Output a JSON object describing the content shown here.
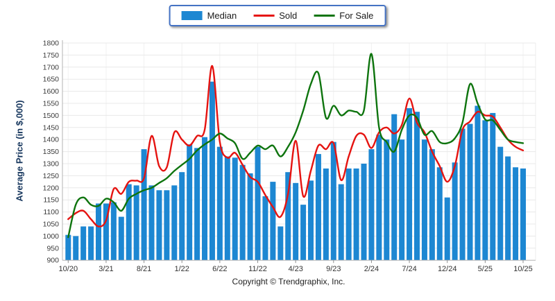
{
  "legend": {
    "items": [
      {
        "label": "Median",
        "type": "bar",
        "color": "#1d87d2"
      },
      {
        "label": "Sold",
        "type": "line",
        "color": "#e51310"
      },
      {
        "label": "For Sale",
        "type": "line",
        "color": "#0e740e"
      }
    ],
    "border_color": "#4472c4"
  },
  "y_axis": {
    "title": "Average Price (in $,000)",
    "min": 900,
    "max": 1800,
    "step": 50
  },
  "footer": {
    "copyright": "Copyright © Trendgraphix, Inc."
  },
  "chart_data": {
    "type": "bar",
    "title": "",
    "xlabel": "",
    "ylabel": "Average Price (in $,000)",
    "ylim": [
      900,
      1800
    ],
    "y_tick_step": 50,
    "grid": true,
    "legend_position": "top-center",
    "x": [
      "10/20",
      "11/20",
      "12/20",
      "1/21",
      "2/21",
      "3/21",
      "4/21",
      "5/21",
      "6/21",
      "7/21",
      "8/21",
      "9/21",
      "10/21",
      "11/21",
      "12/21",
      "1/22",
      "2/22",
      "3/22",
      "4/22",
      "5/22",
      "6/22",
      "7/22",
      "8/22",
      "9/22",
      "10/22",
      "11/22",
      "12/22",
      "1/23",
      "2/23",
      "3/23",
      "4/23",
      "5/23",
      "6/23",
      "7/23",
      "8/23",
      "9/23",
      "10/23",
      "11/23",
      "12/23",
      "1/24",
      "2/24",
      "3/24",
      "4/24",
      "5/24",
      "6/24",
      "7/24",
      "8/24",
      "9/24",
      "10/24",
      "11/24",
      "12/24",
      "1/25",
      "2/25",
      "3/25",
      "4/25",
      "5/25",
      "6/25",
      "7/25",
      "8/25",
      "9/25",
      "10/25"
    ],
    "x_tick_labels": [
      "10/20",
      "3/21",
      "8/21",
      "1/22",
      "6/22",
      "11/22",
      "4/23",
      "9/23",
      "2/24",
      "7/24",
      "12/24",
      "5/25",
      "10/25"
    ],
    "x_tick_indices": [
      0,
      5,
      10,
      15,
      20,
      25,
      30,
      35,
      40,
      45,
      50,
      55,
      60
    ],
    "series": [
      {
        "name": "Median",
        "type": "bar",
        "color": "#1d87d2",
        "values": [
          1005,
          1000,
          1040,
          1040,
          1135,
          1135,
          1140,
          1080,
          1215,
          1210,
          1360,
          1210,
          1190,
          1190,
          1210,
          1265,
          1380,
          1365,
          1410,
          1640,
          1370,
          1330,
          1325,
          1295,
          1260,
          1370,
          1165,
          1225,
          1040,
          1265,
          1220,
          1130,
          1230,
          1340,
          1280,
          1390,
          1215,
          1280,
          1280,
          1300,
          1360,
          1420,
          1400,
          1505,
          1400,
          1530,
          1515,
          1400,
          1360,
          1285,
          1160,
          1305,
          1445,
          1465,
          1540,
          1480,
          1510,
          1370,
          1330,
          1285,
          1280
        ]
      },
      {
        "name": "Sold",
        "type": "line",
        "color": "#e51310",
        "values": [
          1070,
          1095,
          1105,
          1070,
          1040,
          1065,
          1195,
          1175,
          1225,
          1230,
          1240,
          1415,
          1290,
          1285,
          1430,
          1400,
          1375,
          1415,
          1440,
          1705,
          1390,
          1325,
          1345,
          1295,
          1245,
          1225,
          1170,
          1120,
          1080,
          1175,
          1395,
          1165,
          1270,
          1375,
          1360,
          1385,
          1232,
          1330,
          1415,
          1420,
          1365,
          1430,
          1450,
          1425,
          1460,
          1570,
          1470,
          1430,
          1350,
          1290,
          1225,
          1290,
          1440,
          1475,
          1515,
          1500,
          1495,
          1450,
          1400,
          1370,
          1355
        ]
      },
      {
        "name": "For Sale",
        "type": "line",
        "color": "#0e740e",
        "values": [
          995,
          1130,
          1160,
          1130,
          1125,
          1155,
          1140,
          1105,
          1155,
          1175,
          1190,
          1200,
          1220,
          1240,
          1270,
          1295,
          1320,
          1355,
          1380,
          1400,
          1425,
          1405,
          1385,
          1320,
          1345,
          1375,
          1360,
          1375,
          1330,
          1370,
          1430,
          1520,
          1630,
          1675,
          1490,
          1540,
          1500,
          1520,
          1515,
          1520,
          1755,
          1450,
          1390,
          1350,
          1440,
          1500,
          1490,
          1420,
          1435,
          1390,
          1385,
          1405,
          1470,
          1630,
          1550,
          1483,
          1480,
          1440,
          1400,
          1390,
          1385
        ]
      }
    ]
  }
}
